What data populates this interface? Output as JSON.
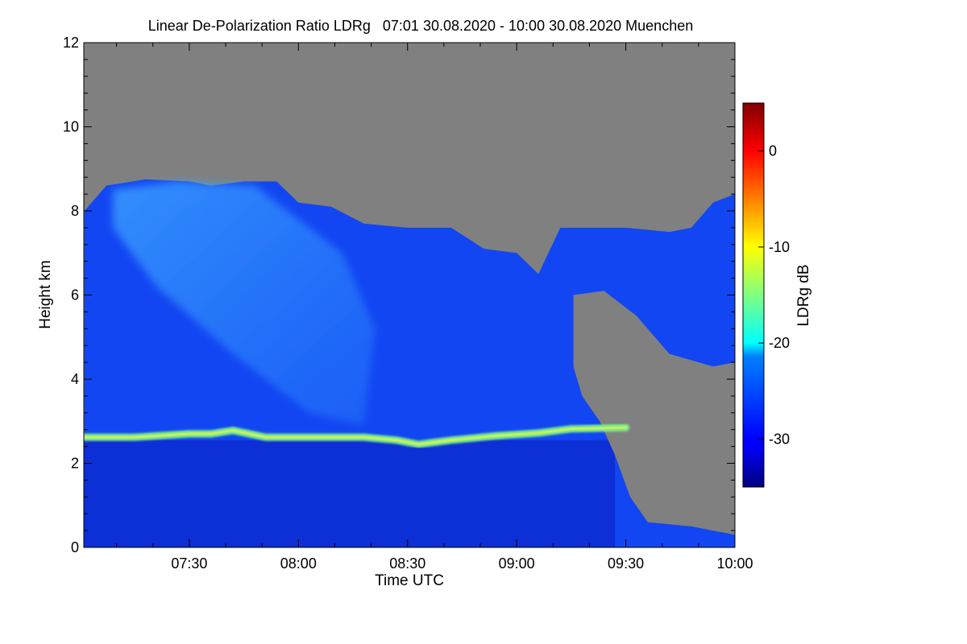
{
  "chart_data": {
    "type": "heatmap",
    "title": "Linear De-Polarization Ratio LDRg   07:01 30.08.2020 - 10:00 30.08.2020 Muenchen",
    "xlabel": "Time UTC",
    "ylabel": "Height km",
    "x_range_hours": [
      7.0167,
      10.0
    ],
    "y_range_km": [
      0,
      12
    ],
    "x_ticks": [
      {
        "value": 7.5,
        "label": "07:30"
      },
      {
        "value": 8.0,
        "label": "08:00"
      },
      {
        "value": 8.5,
        "label": "08:30"
      },
      {
        "value": 9.0,
        "label": "09:00"
      },
      {
        "value": 9.5,
        "label": "09:30"
      },
      {
        "value": 10.0,
        "label": "10:00"
      }
    ],
    "y_ticks": [
      {
        "value": 0,
        "label": "0"
      },
      {
        "value": 2,
        "label": "2"
      },
      {
        "value": 4,
        "label": "4"
      },
      {
        "value": 6,
        "label": "6"
      },
      {
        "value": 8,
        "label": "8"
      },
      {
        "value": 10,
        "label": "10"
      },
      {
        "value": 12,
        "label": "12"
      }
    ],
    "colorbar": {
      "label": "LDRg dB",
      "range": [
        -35,
        5
      ],
      "ticks": [
        {
          "value": 0,
          "label": "0"
        },
        {
          "value": -10,
          "label": "-10"
        },
        {
          "value": -20,
          "label": "-20"
        },
        {
          "value": -30,
          "label": "-30"
        }
      ]
    },
    "no_data_color": "#808080",
    "features": {
      "melting_layer": {
        "description": "bright band",
        "ldr_db": -20,
        "points": [
          [
            7.02,
            2.62
          ],
          [
            7.25,
            2.62
          ],
          [
            7.5,
            2.7
          ],
          [
            7.6,
            2.7
          ],
          [
            7.7,
            2.78
          ],
          [
            7.85,
            2.62
          ],
          [
            8.0,
            2.62
          ],
          [
            8.3,
            2.62
          ],
          [
            8.45,
            2.55
          ],
          [
            8.55,
            2.45
          ],
          [
            8.7,
            2.55
          ],
          [
            8.9,
            2.65
          ],
          [
            9.1,
            2.72
          ],
          [
            9.25,
            2.82
          ],
          [
            9.5,
            2.85
          ]
        ]
      },
      "ice_cloud_top_km": [
        [
          7.02,
          8.0
        ],
        [
          7.12,
          8.6
        ],
        [
          7.3,
          8.75
        ],
        [
          7.5,
          8.7
        ],
        [
          7.6,
          8.6
        ],
        [
          7.75,
          8.7
        ],
        [
          7.9,
          8.7
        ],
        [
          8.0,
          8.2
        ],
        [
          8.15,
          8.1
        ],
        [
          8.3,
          7.7
        ],
        [
          8.5,
          7.6
        ],
        [
          8.7,
          7.6
        ],
        [
          8.85,
          7.1
        ],
        [
          9.0,
          7.0
        ],
        [
          9.1,
          6.5
        ],
        [
          9.2,
          7.6
        ],
        [
          9.35,
          7.6
        ],
        [
          9.5,
          7.6
        ],
        [
          9.7,
          7.5
        ],
        [
          9.8,
          7.6
        ],
        [
          9.9,
          8.2
        ],
        [
          10.0,
          8.4
        ]
      ],
      "background_ldr_db": -31,
      "lower_layer_ldr_db": -33
    }
  }
}
